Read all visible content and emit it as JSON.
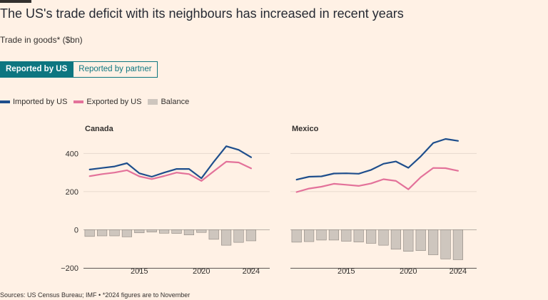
{
  "header": {
    "title": "The US's trade deficit with its neighbours has increased in recent years",
    "subtitle": "Trade in goods* ($bn)"
  },
  "toggle": {
    "reported_by_us": "Reported by US",
    "reported_by_partner": "Reported by partner",
    "active": "reported_by_us"
  },
  "legend": {
    "imported": "Imported by US",
    "exported": "Exported by US",
    "balance": "Balance"
  },
  "colors": {
    "imported": "#1E4E8C",
    "exported": "#E3729A",
    "balance": "#CEC6BE",
    "balance_stroke": "#8E8780",
    "active_toggle": "#0D7680",
    "background": "#FFF1E5"
  },
  "footer": {
    "source": "Sources: US Census Bureau; IMF • *2024 figures are to November"
  },
  "chart_data": [
    {
      "type": "line",
      "title": "Canada",
      "x": [
        2011,
        2012,
        2013,
        2014,
        2015,
        2016,
        2017,
        2018,
        2019,
        2020,
        2021,
        2022,
        2023,
        2024
      ],
      "series": [
        {
          "name": "Imported by US",
          "values": [
            316,
            324,
            332,
            349,
            296,
            278,
            300,
            319,
            319,
            270,
            357,
            438,
            419,
            380
          ]
        },
        {
          "name": "Exported by US",
          "values": [
            281,
            292,
            300,
            312,
            280,
            266,
            282,
            300,
            292,
            256,
            307,
            357,
            353,
            322
          ]
        },
        {
          "name": "Balance",
          "type": "bar",
          "values": [
            -35,
            -32,
            -32,
            -37,
            -16,
            -12,
            -18,
            -19,
            -27,
            -14,
            -50,
            -81,
            -66,
            -58
          ]
        }
      ],
      "ylim": [
        -200,
        450
      ],
      "yticks": [
        -200,
        0,
        200,
        400
      ],
      "xticks": [
        2015,
        2020,
        2024
      ],
      "xlim": [
        2010.5,
        2025.5
      ]
    },
    {
      "type": "line",
      "title": "Mexico",
      "x": [
        2011,
        2012,
        2013,
        2014,
        2015,
        2016,
        2017,
        2018,
        2019,
        2020,
        2021,
        2022,
        2023,
        2024
      ],
      "series": [
        {
          "name": "Imported by US",
          "values": [
            263,
            278,
            280,
            295,
            296,
            294,
            314,
            346,
            358,
            325,
            385,
            455,
            476,
            466
          ]
        },
        {
          "name": "Exported by US",
          "values": [
            198,
            216,
            226,
            241,
            236,
            230,
            243,
            265,
            256,
            212,
            276,
            324,
            323,
            309
          ]
        },
        {
          "name": "Balance",
          "type": "bar",
          "values": [
            -65,
            -62,
            -54,
            -54,
            -60,
            -64,
            -71,
            -81,
            -102,
            -113,
            -109,
            -131,
            -153,
            -157
          ]
        }
      ],
      "ylim": [
        -200,
        450
      ],
      "yticks": [
        -200,
        0,
        200,
        400
      ],
      "xticks": [
        2015,
        2020,
        2024
      ],
      "xlim": [
        2010.5,
        2025.5
      ]
    }
  ]
}
